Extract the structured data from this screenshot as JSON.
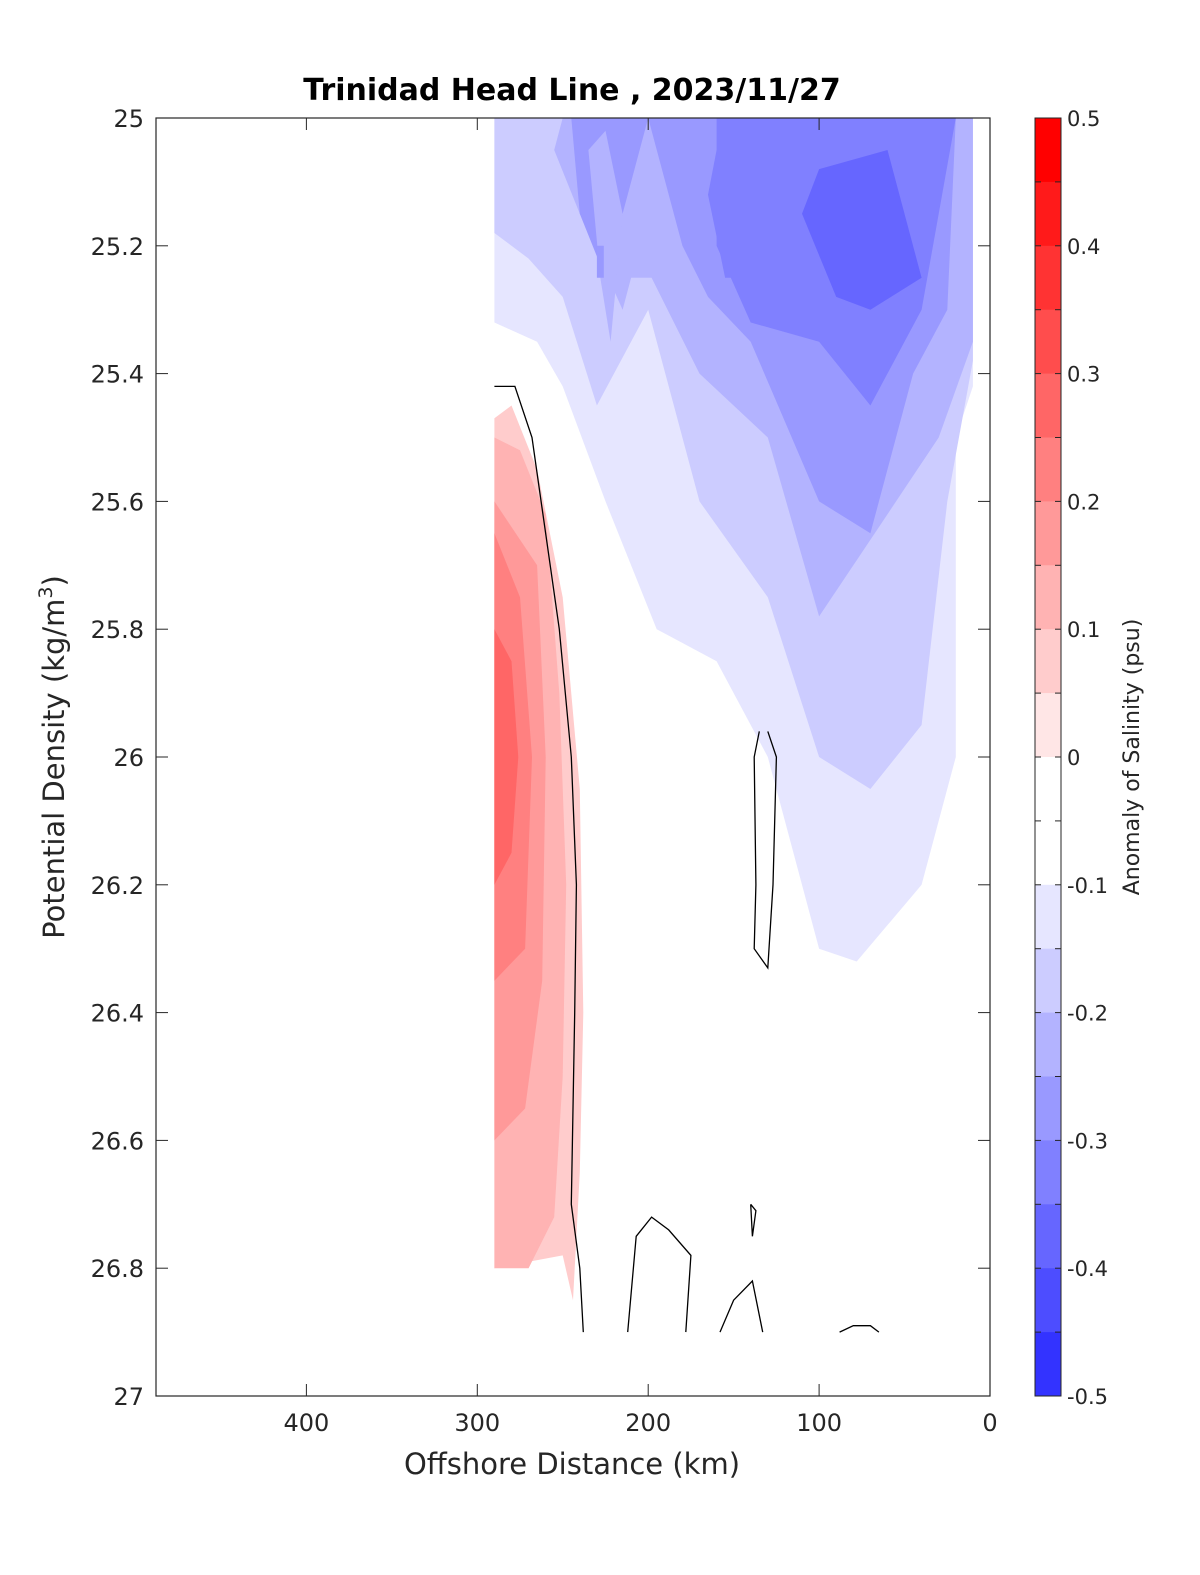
{
  "chart_data": {
    "type": "heatmap",
    "title": "Trinidad Head Line , 2023/11/27",
    "xlabel": "Offshore Distance (km)",
    "ylabel_main": "Potential Density (kg/m",
    "ylabel_sup": "3",
    "ylabel_close": ")",
    "x_reversed": true,
    "y_reversed": true,
    "xlim": [
      0,
      488
    ],
    "ylim": [
      25,
      27
    ],
    "x_ticks": [
      400,
      300,
      200,
      100,
      0
    ],
    "y_ticks": [
      "25",
      "25.2",
      "25.4",
      "25.6",
      "25.8",
      "26",
      "26.2",
      "26.4",
      "26.6",
      "26.8",
      "27"
    ],
    "colorbar": {
      "label": "Anomaly of Salinity (psu)",
      "range": [
        -0.5,
        0.5
      ],
      "step": 0.05,
      "tick_labels": [
        "0.5",
        "0.4",
        "0.3",
        "0.2",
        "0.1",
        "0",
        "-0.1",
        "-0.2",
        "-0.3",
        "-0.4",
        "-0.5"
      ],
      "colors_top_to_bottom": [
        "#ff0000",
        "#ff1a1a",
        "#ff3333",
        "#ff4d4d",
        "#ff6666",
        "#ff8080",
        "#ff9999",
        "#ffb3b3",
        "#ffcccc",
        "#ffe6e6",
        "#ffffff",
        "#ffffff",
        "#e6e6ff",
        "#ccccff",
        "#b3b3ff",
        "#9999ff",
        "#8080ff",
        "#6666ff",
        "#4d4dff",
        "#3333ff",
        "#1a1aff",
        "#0000ff"
      ]
    },
    "contour_level": 0,
    "fields": [
      {
        "name": "offshore-positive-anomaly",
        "value_bands": [
          0.05,
          0.1,
          0.15,
          0.2,
          0.25
        ],
        "x_extent": [
          244,
          290
        ],
        "y_extent": [
          25.45,
          26.85
        ],
        "peak": 0.27,
        "peak_at": [
          288,
          26.0
        ]
      },
      {
        "name": "inshore-negative-anomaly",
        "value_bands": [
          -0.05,
          -0.1,
          -0.15,
          -0.2,
          -0.25,
          -0.3,
          -0.35
        ],
        "x_extent": [
          10,
          290
        ],
        "y_extent": [
          25.0,
          26.73
        ],
        "minimum": -0.38,
        "minimum_at": [
          50,
          25.2
        ]
      }
    ]
  }
}
